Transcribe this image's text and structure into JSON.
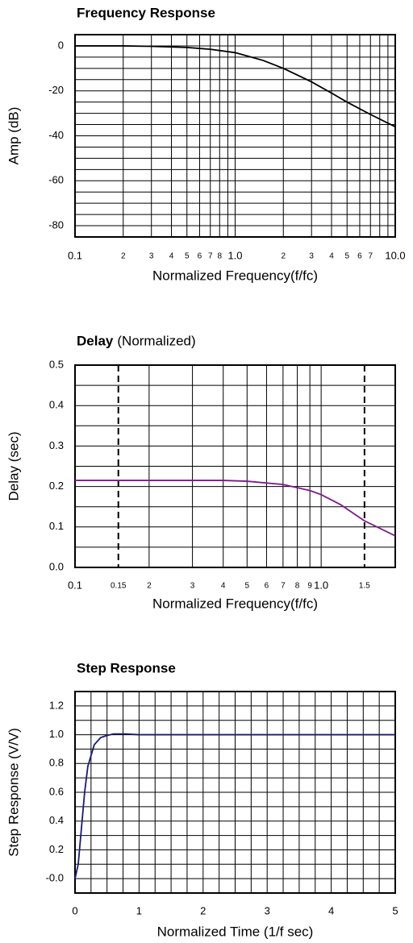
{
  "chart_data": [
    {
      "type": "line",
      "title": "Frequency Response",
      "xlabel": "Normalized Frequency(f/fc)",
      "ylabel": "Amp (dB)",
      "xlog": true,
      "xlim": [
        0.1,
        10
      ],
      "ylim": [
        -85,
        5
      ],
      "xticks": [
        0.1,
        {
          "value": 0.2,
          "label": "2"
        },
        {
          "value": 0.3,
          "label": "3"
        },
        {
          "value": 0.4,
          "label": "4"
        },
        {
          "value": 0.5,
          "label": "5"
        },
        {
          "value": 0.6,
          "label": "6"
        },
        {
          "value": 0.7,
          "label": "7"
        },
        {
          "value": 0.8,
          "label": "8"
        },
        {
          "value": 1,
          "label": "1.0"
        },
        2,
        3,
        4,
        5,
        6,
        7,
        {
          "value": 10,
          "label": "10.0"
        }
      ],
      "xminor": [
        0.9,
        8,
        9
      ],
      "yticks": [
        0,
        -20,
        -40,
        -60,
        -80
      ],
      "yminor": [
        -85,
        -75,
        -70,
        -65,
        -55,
        -50,
        -45,
        -35,
        -30,
        -25,
        -15,
        -10,
        -5,
        5
      ],
      "grid": true,
      "color": "#000000",
      "x": [
        0.1,
        0.2,
        0.3,
        0.5,
        0.7,
        1,
        1.5,
        2,
        3,
        4,
        5,
        7,
        10
      ],
      "values": [
        0,
        0,
        -0.2,
        -0.7,
        -1.5,
        -3,
        -6.5,
        -10,
        -16,
        -21,
        -25,
        -30.5,
        -36
      ]
    },
    {
      "type": "line",
      "title": "Delay",
      "subtitle": "(Normalized)",
      "xlabel": "Normalized Frequency(f/fc)",
      "ylabel": "Delay (sec)",
      "xlog": true,
      "xlim": [
        0.1,
        2
      ],
      "ylim": [
        0,
        0.5
      ],
      "xticks": [
        0.1,
        0.15,
        {
          "value": 0.2,
          "label": "2"
        },
        {
          "value": 0.3,
          "label": "3"
        },
        {
          "value": 0.4,
          "label": "4"
        },
        {
          "value": 0.5,
          "label": "5"
        },
        {
          "value": 0.6,
          "label": "6"
        },
        {
          "value": 0.7,
          "label": "7"
        },
        {
          "value": 0.8,
          "label": "8"
        },
        {
          "value": 0.9,
          "label": "9"
        },
        {
          "value": 1,
          "label": "1.0"
        },
        1.5
      ],
      "markers": [
        0.15,
        1.5
      ],
      "yticks": [
        {
          "value": 0,
          "label": "0.0"
        },
        0.1,
        0.2,
        0.3,
        0.4,
        0.5
      ],
      "yminor": [
        0.05,
        0.15,
        0.25,
        0.35,
        0.45
      ],
      "grid": true,
      "color": "#7b1a8a",
      "x": [
        0.1,
        0.2,
        0.3,
        0.4,
        0.5,
        0.7,
        0.9,
        1,
        1.2,
        1.5,
        2
      ],
      "values": [
        0.215,
        0.215,
        0.215,
        0.215,
        0.213,
        0.205,
        0.19,
        0.18,
        0.155,
        0.115,
        0.078
      ]
    },
    {
      "type": "line",
      "title": "Step Response",
      "xlabel": "Normalized Time (1/f sec)",
      "ylabel": "Step Response (V/V)",
      "xlog": false,
      "xlim": [
        0,
        5
      ],
      "ylim": [
        -0.1,
        1.3
      ],
      "xticks": [
        0,
        1,
        2,
        3,
        4,
        5
      ],
      "xminor": [
        0.25,
        0.5,
        0.75,
        1.25,
        1.5,
        1.75,
        2.25,
        2.5,
        2.75,
        3.25,
        3.5,
        3.75,
        4.25,
        4.5,
        4.75
      ],
      "yticks": [
        {
          "value": 0,
          "label": "-0.0"
        },
        0.2,
        0.4,
        0.6,
        0.8,
        {
          "value": 1,
          "label": "1.0"
        },
        1.2
      ],
      "yminor": [
        0.1,
        0.3,
        0.5,
        0.7,
        0.9,
        1.1
      ],
      "grid": true,
      "color": "#1a1a7a",
      "x": [
        0,
        0.05,
        0.1,
        0.15,
        0.2,
        0.3,
        0.4,
        0.5,
        0.6,
        0.8,
        1,
        5
      ],
      "values": [
        0,
        0.1,
        0.35,
        0.6,
        0.78,
        0.93,
        0.98,
        0.995,
        1.005,
        1.005,
        1,
        1
      ]
    }
  ]
}
